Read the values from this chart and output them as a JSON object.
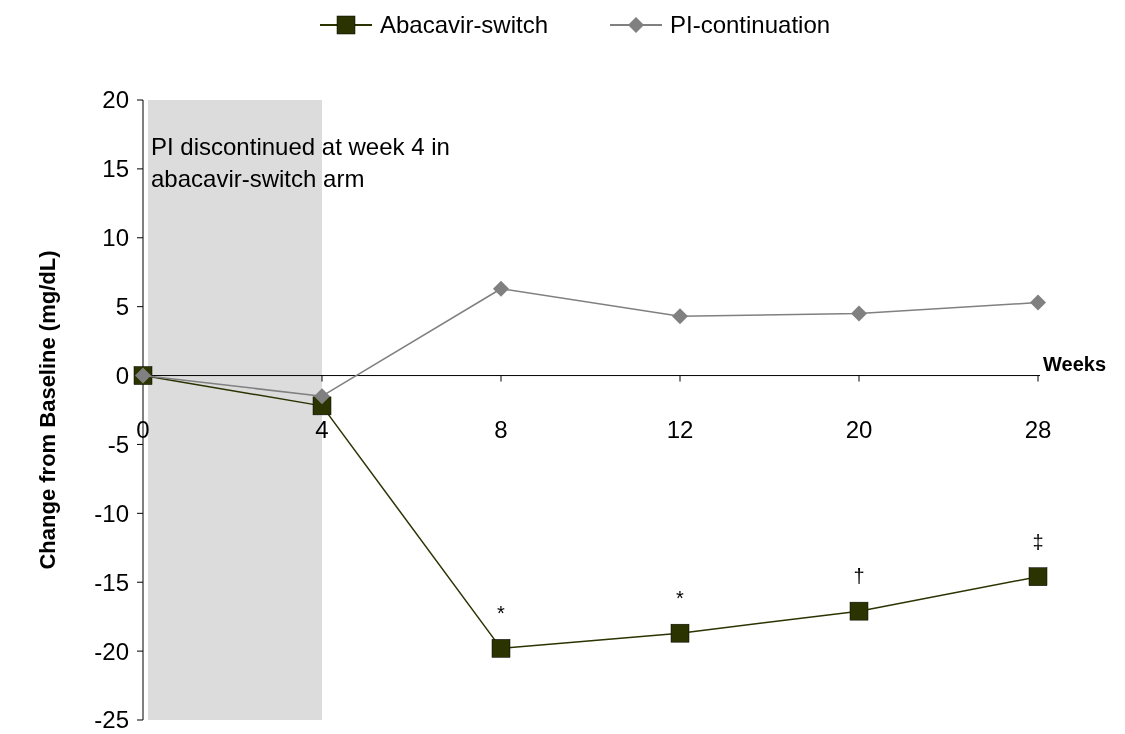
{
  "chart_data": {
    "type": "line",
    "ylabel": "Change from Baseline (mg/dL)",
    "xlabel": "Weeks",
    "categories": [
      "0",
      "4",
      "8",
      "12",
      "20",
      "28"
    ],
    "ylim": [
      -25,
      20
    ],
    "yticks": [
      -25,
      -20,
      -15,
      -10,
      -5,
      0,
      5,
      10,
      15,
      20
    ],
    "grid": false,
    "legend": "top",
    "series": [
      {
        "name": "Abacavir-switch",
        "color": "#2b3300",
        "marker": "square",
        "values": [
          0,
          -2.2,
          -19.8,
          -18.7,
          -17.1,
          -14.6
        ]
      },
      {
        "name": "PI-continuation",
        "color": "#808080",
        "marker": "diamond",
        "values": [
          0,
          -1.5,
          6.3,
          4.3,
          4.5,
          5.3
        ]
      }
    ],
    "bands": [
      {
        "axis": "x",
        "from": "0",
        "to": "4",
        "label": "PI discontinued at week 4 in abacavir-switch arm",
        "color": "#dcdcdc"
      }
    ],
    "annotations": [
      {
        "text": "*",
        "x": "8",
        "y": -19.8
      },
      {
        "text": "*",
        "x": "12",
        "y": -18.7
      },
      {
        "text": "†",
        "x": "20",
        "y": -17.1
      },
      {
        "text": "‡",
        "x": "28",
        "y": -14.6
      }
    ]
  }
}
